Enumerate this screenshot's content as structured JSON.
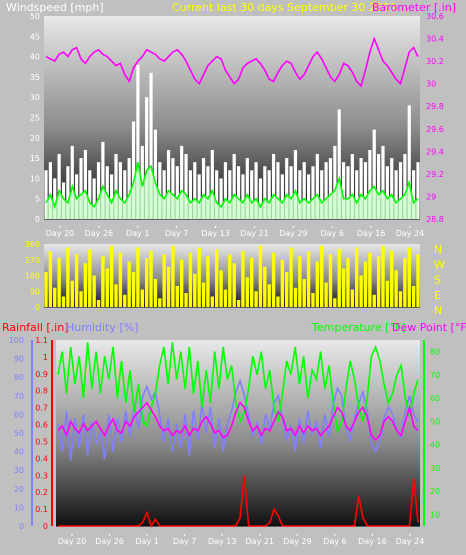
{
  "header": {
    "wind_label": "Windspeed [mph]",
    "period_label": "Current last 30 days September 30 2021",
    "baro_label": "Barometer [.in]",
    "rain_label": "Rainfall [.in]",
    "humidity_label": "Humidity [%]",
    "temp_label": "Temperature [°F]",
    "dew_label": "Dew Point [°F]"
  },
  "colors": {
    "wind_label": "#ffffff",
    "period_label": "#ffff00",
    "baro": "#ff00ff",
    "gust": "#ffffff",
    "avgwind": "#00ff00",
    "winddir": "#ffff00",
    "rain": "#ff0000",
    "humidity": "#8080ff",
    "temp": "#00ff00",
    "dew": "#ff00ff"
  },
  "x_ticks": [
    "Day 20",
    "Day 26",
    "Day 1",
    "Day 7",
    "Day 13",
    "Day 21",
    "Day 29",
    "Day 6",
    "Day 16",
    "Day 24"
  ],
  "chart_data": [
    {
      "type": "line",
      "name": "wind-barometer",
      "y_left": {
        "ticks": [
          "0",
          "5",
          "10",
          "15",
          "20",
          "25",
          "30",
          "35",
          "40",
          "45",
          "50"
        ],
        "range": [
          0,
          50
        ]
      },
      "y_right": {
        "ticks": [
          "28.8",
          "29",
          "29.2",
          "29.4",
          "29.6",
          "29.8",
          "30",
          "30.2",
          "30.4",
          "30.6"
        ],
        "range": [
          28.8,
          30.6
        ]
      },
      "series": [
        {
          "key": "gust",
          "role": "wind gust",
          "values": [
            12,
            14,
            10,
            16,
            9,
            13,
            18,
            11,
            15,
            17,
            12,
            10,
            14,
            19,
            13,
            11,
            16,
            14,
            12,
            15,
            24,
            38,
            18,
            30,
            36,
            22,
            14,
            12,
            17,
            15,
            13,
            18,
            16,
            12,
            14,
            11,
            15,
            13,
            17,
            12,
            10,
            14,
            12,
            16,
            13,
            11,
            15,
            12,
            14,
            10,
            13,
            12,
            16,
            14,
            11,
            15,
            13,
            17,
            12,
            14,
            11,
            13,
            16,
            12,
            14,
            15,
            18,
            27,
            14,
            13,
            16,
            12,
            15,
            14,
            17,
            22,
            16,
            18,
            13,
            15,
            12,
            14,
            16,
            28,
            12,
            14
          ]
        },
        {
          "key": "avgwind",
          "role": "average wind",
          "values": [
            4,
            6,
            3,
            7,
            5,
            4,
            8,
            5,
            6,
            7,
            4,
            3,
            5,
            8,
            6,
            4,
            7,
            5,
            4,
            6,
            9,
            14,
            8,
            12,
            13,
            9,
            6,
            5,
            7,
            6,
            5,
            7,
            6,
            4,
            5,
            4,
            6,
            5,
            7,
            4,
            3,
            5,
            4,
            6,
            5,
            4,
            6,
            4,
            5,
            3,
            5,
            4,
            6,
            5,
            4,
            6,
            5,
            7,
            4,
            5,
            4,
            5,
            6,
            4,
            5,
            6,
            7,
            10,
            5,
            5,
            6,
            4,
            6,
            5,
            7,
            8,
            6,
            7,
            5,
            6,
            4,
            5,
            6,
            9,
            4,
            5
          ]
        },
        {
          "key": "baro",
          "role": "barometer",
          "values": [
            30.24,
            30.22,
            30.2,
            30.26,
            30.28,
            30.24,
            30.3,
            30.32,
            30.22,
            30.18,
            30.24,
            30.28,
            30.3,
            30.26,
            30.24,
            30.2,
            30.16,
            30.18,
            30.08,
            30.02,
            30.14,
            30.2,
            30.24,
            30.3,
            30.28,
            30.26,
            30.22,
            30.2,
            30.24,
            30.28,
            30.3,
            30.26,
            30.2,
            30.12,
            30.04,
            30.0,
            30.08,
            30.16,
            30.2,
            30.24,
            30.22,
            30.12,
            30.06,
            30.0,
            30.04,
            30.14,
            30.18,
            30.2,
            30.22,
            30.18,
            30.12,
            30.04,
            30.02,
            30.1,
            30.16,
            30.2,
            30.18,
            30.1,
            30.04,
            30.08,
            30.16,
            30.24,
            30.28,
            30.22,
            30.14,
            30.06,
            30.02,
            30.08,
            30.18,
            30.16,
            30.1,
            30.02,
            29.98,
            30.12,
            30.28,
            30.4,
            30.3,
            30.2,
            30.16,
            30.1,
            30.04,
            30.0,
            30.14,
            30.28,
            30.32,
            30.24
          ]
        }
      ]
    },
    {
      "type": "bar",
      "name": "wind-direction",
      "y_left": {
        "ticks": [
          "0",
          "90",
          "180",
          "270",
          "360"
        ],
        "range": [
          0,
          360
        ]
      },
      "y_right": {
        "ticks": [
          "N",
          "W",
          "S",
          "E",
          "N"
        ]
      },
      "series": [
        {
          "key": "winddir",
          "role": "wind direction",
          "values": [
            200,
            320,
            110,
            280,
            60,
            340,
            150,
            300,
            90,
            250,
            330,
            180,
            40,
            290,
            220,
            350,
            130,
            310,
            70,
            260,
            200,
            340,
            100,
            280,
            320,
            160,
            50,
            300,
            230,
            350,
            120,
            270,
            80,
            310,
            190,
            340,
            140,
            290,
            60,
            330,
            210,
            100,
            300,
            250,
            40,
            320,
            170,
            280,
            90,
            350,
            230,
            130,
            310,
            60,
            270,
            200,
            340,
            110,
            290,
            160,
            320,
            80,
            260,
            350,
            140,
            300,
            50,
            330,
            220,
            280,
            100,
            340,
            180,
            260,
            310,
            70,
            290,
            350,
            150,
            320,
            210,
            90,
            280,
            340,
            120,
            300
          ]
        }
      ]
    },
    {
      "type": "line",
      "name": "rain-humidity-temperature",
      "y_left_rain": {
        "ticks": [
          "0",
          "0.1",
          "0.2",
          "0.3",
          "0.4",
          "0.5",
          "0.6",
          "0.7",
          "0.8",
          "0.9",
          "1",
          "1.1"
        ],
        "range": [
          0,
          1.1
        ]
      },
      "y_left_humidity": {
        "ticks": [
          "0",
          "10",
          "20",
          "30",
          "40",
          "50",
          "60",
          "70",
          "80",
          "90",
          "100"
        ],
        "range": [
          0,
          100
        ]
      },
      "y_right": {
        "ticks": [
          "10",
          "20",
          "30",
          "40",
          "50",
          "60",
          "70",
          "80"
        ],
        "range": [
          5,
          85
        ]
      },
      "series": [
        {
          "key": "rain",
          "role": "rainfall",
          "values": [
            0,
            0,
            0,
            0,
            0,
            0,
            0,
            0,
            0,
            0,
            0,
            0,
            0,
            0,
            0,
            0,
            0,
            0,
            0,
            0,
            0.02,
            0.08,
            0,
            0.04,
            0,
            0,
            0,
            0,
            0,
            0,
            0,
            0,
            0,
            0,
            0,
            0,
            0,
            0,
            0,
            0,
            0,
            0,
            0,
            0.05,
            0.3,
            0,
            0,
            0,
            0,
            0,
            0.02,
            0.1,
            0.06,
            0,
            0,
            0,
            0,
            0,
            0,
            0,
            0,
            0,
            0,
            0,
            0,
            0,
            0,
            0,
            0,
            0,
            0,
            0.18,
            0.05,
            0,
            0,
            0,
            0,
            0,
            0,
            0,
            0,
            0,
            0,
            0,
            0.28,
            0.02
          ]
        },
        {
          "key": "humidity",
          "role": "humidity",
          "values": [
            55,
            40,
            62,
            35,
            58,
            42,
            60,
            38,
            56,
            44,
            50,
            36,
            60,
            40,
            58,
            45,
            62,
            48,
            65,
            52,
            70,
            75,
            68,
            72,
            60,
            45,
            58,
            40,
            55,
            42,
            60,
            38,
            62,
            46,
            66,
            50,
            64,
            42,
            58,
            40,
            55,
            62,
            72,
            78,
            70,
            60,
            48,
            56,
            44,
            60,
            52,
            66,
            70,
            58,
            46,
            54,
            40,
            58,
            44,
            62,
            50,
            56,
            42,
            60,
            48,
            66,
            74,
            70,
            52,
            46,
            58,
            66,
            72,
            62,
            44,
            40,
            46,
            58,
            64,
            60,
            52,
            48,
            62,
            70,
            60,
            56
          ]
        },
        {
          "key": "temp",
          "role": "temperature",
          "values": [
            70,
            80,
            62,
            82,
            66,
            78,
            60,
            84,
            64,
            80,
            62,
            78,
            68,
            82,
            60,
            76,
            58,
            72,
            54,
            66,
            50,
            48,
            56,
            62,
            74,
            82,
            66,
            84,
            68,
            80,
            64,
            82,
            62,
            76,
            56,
            72,
            58,
            80,
            64,
            82,
            68,
            74,
            58,
            50,
            54,
            64,
            78,
            70,
            80,
            64,
            72,
            56,
            50,
            62,
            76,
            70,
            82,
            66,
            78,
            60,
            72,
            68,
            80,
            64,
            74,
            58,
            46,
            50,
            64,
            76,
            68,
            56,
            50,
            60,
            78,
            82,
            76,
            66,
            58,
            62,
            70,
            74,
            60,
            52,
            62,
            68
          ]
        },
        {
          "key": "dew",
          "role": "dew point",
          "values": [
            46,
            48,
            44,
            50,
            47,
            45,
            49,
            46,
            48,
            50,
            47,
            44,
            48,
            51,
            46,
            45,
            50,
            48,
            52,
            54,
            56,
            58,
            55,
            52,
            48,
            46,
            47,
            44,
            46,
            45,
            48,
            44,
            47,
            46,
            50,
            52,
            49,
            45,
            46,
            43,
            44,
            48,
            54,
            58,
            56,
            50,
            46,
            48,
            44,
            47,
            46,
            50,
            54,
            52,
            46,
            47,
            44,
            48,
            45,
            48,
            46,
            47,
            44,
            46,
            48,
            52,
            56,
            54,
            48,
            46,
            50,
            54,
            56,
            52,
            44,
            42,
            44,
            50,
            52,
            50,
            46,
            44,
            50,
            56,
            48,
            46
          ]
        }
      ]
    }
  ]
}
